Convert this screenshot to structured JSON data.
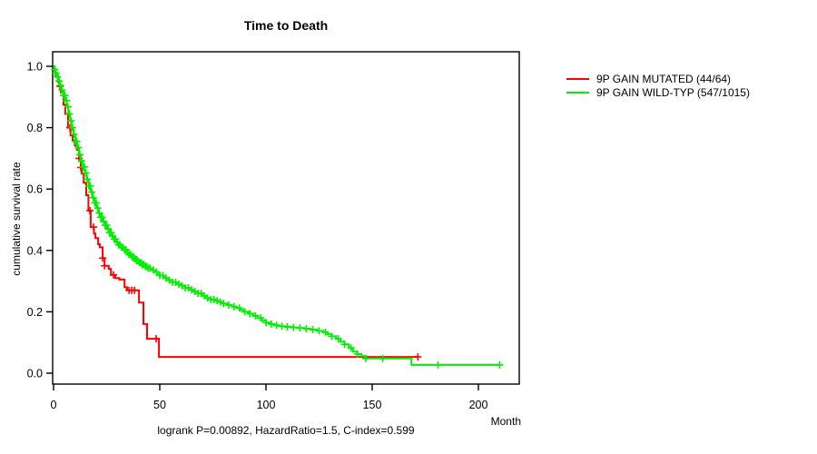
{
  "chart_data": {
    "type": "line",
    "subtype": "kaplan_meier_step",
    "title": "Time to Death",
    "xlabel": "Month",
    "ylabel": "cumulative survival rate",
    "annotation": "logrank P=0.00892, HazardRatio=1.5, C-index=0.599",
    "xlim": [
      0,
      220
    ],
    "ylim": [
      0.0,
      1.0
    ],
    "x_ticks": [
      0,
      50,
      100,
      150,
      200
    ],
    "y_ticks": [
      0.0,
      0.2,
      0.4,
      0.6,
      0.8,
      1.0
    ],
    "grid": false,
    "legend_position": "outside-top-right",
    "series": [
      {
        "name": "9P GAIN MUTATED (44/64)",
        "color": "#ff0000",
        "steps": [
          [
            0,
            1.0
          ],
          [
            0.5,
            0.985
          ],
          [
            1,
            0.97
          ],
          [
            2,
            0.95
          ],
          [
            2.6,
            0.935
          ],
          [
            3.5,
            0.915
          ],
          [
            4.7,
            0.875
          ],
          [
            5.5,
            0.845
          ],
          [
            6.8,
            0.8
          ],
          [
            8,
            0.775
          ],
          [
            9,
            0.758
          ],
          [
            10,
            0.742
          ],
          [
            11,
            0.728
          ],
          [
            12,
            0.7
          ],
          [
            12.8,
            0.67
          ],
          [
            13.3,
            0.65
          ],
          [
            14.2,
            0.62
          ],
          [
            15.4,
            0.58
          ],
          [
            16.4,
            0.53
          ],
          [
            17.5,
            0.476
          ],
          [
            19,
            0.455
          ],
          [
            19.7,
            0.44
          ],
          [
            21,
            0.42
          ],
          [
            21.8,
            0.41
          ],
          [
            23.1,
            0.375
          ],
          [
            24,
            0.35
          ],
          [
            26,
            0.34
          ],
          [
            27,
            0.32
          ],
          [
            29,
            0.31
          ],
          [
            31,
            0.305
          ],
          [
            33.4,
            0.28
          ],
          [
            34.6,
            0.27
          ],
          [
            40.2,
            0.23
          ],
          [
            42.3,
            0.16
          ],
          [
            44,
            0.112
          ],
          [
            49.6,
            0.053
          ],
          [
            171.5,
            0.053
          ]
        ],
        "censor_marks": [
          3,
          7.7,
          12,
          12.8,
          17.1,
          18.8,
          23.1,
          24,
          28.2,
          35.5,
          36.8,
          38.1,
          48.3,
          171.5
        ]
      },
      {
        "name": "9P GAIN WILD-TYP (547/1015)",
        "color": "#00ee00",
        "steps": [
          [
            0,
            1.0
          ],
          [
            0.5,
            0.99
          ],
          [
            1,
            0.978
          ],
          [
            1.7,
            0.965
          ],
          [
            2.4,
            0.952
          ],
          [
            3.1,
            0.938
          ],
          [
            3.8,
            0.922
          ],
          [
            4.7,
            0.905
          ],
          [
            5.5,
            0.888
          ],
          [
            6.2,
            0.868
          ],
          [
            7,
            0.845
          ],
          [
            7.8,
            0.822
          ],
          [
            8.6,
            0.8
          ],
          [
            9.4,
            0.778
          ],
          [
            10.3,
            0.755
          ],
          [
            11.1,
            0.735
          ],
          [
            12,
            0.712
          ],
          [
            12.9,
            0.692
          ],
          [
            13.8,
            0.672
          ],
          [
            14.7,
            0.652
          ],
          [
            15.6,
            0.632
          ],
          [
            16.6,
            0.61
          ],
          [
            17.5,
            0.59
          ],
          [
            18.4,
            0.572
          ],
          [
            19.3,
            0.555
          ],
          [
            20.2,
            0.538
          ],
          [
            21.2,
            0.522
          ],
          [
            22.2,
            0.508
          ],
          [
            23.2,
            0.494
          ],
          [
            24.2,
            0.482
          ],
          [
            25.2,
            0.47
          ],
          [
            26.2,
            0.458
          ],
          [
            27.3,
            0.447
          ],
          [
            28.4,
            0.437
          ],
          [
            29.5,
            0.427
          ],
          [
            30.6,
            0.418
          ],
          [
            31.8,
            0.41
          ],
          [
            33,
            0.402
          ],
          [
            34.2,
            0.394
          ],
          [
            35.4,
            0.387
          ],
          [
            36.6,
            0.38
          ],
          [
            37.8,
            0.373
          ],
          [
            39,
            0.366
          ],
          [
            40.3,
            0.36
          ],
          [
            41.6,
            0.354
          ],
          [
            43,
            0.348
          ],
          [
            44.4,
            0.342
          ],
          [
            45.8,
            0.336
          ],
          [
            47.2,
            0.33
          ],
          [
            48.6,
            0.324
          ],
          [
            50,
            0.318
          ],
          [
            52,
            0.31
          ],
          [
            54,
            0.303
          ],
          [
            56,
            0.296
          ],
          [
            58,
            0.29
          ],
          [
            60,
            0.285
          ],
          [
            62,
            0.278
          ],
          [
            64,
            0.272
          ],
          [
            66,
            0.266
          ],
          [
            68,
            0.26
          ],
          [
            70,
            0.252
          ],
          [
            72,
            0.245
          ],
          [
            74,
            0.24
          ],
          [
            76,
            0.236
          ],
          [
            78,
            0.232
          ],
          [
            80,
            0.227
          ],
          [
            82,
            0.222
          ],
          [
            84,
            0.217
          ],
          [
            86,
            0.212
          ],
          [
            88,
            0.206
          ],
          [
            90,
            0.2
          ],
          [
            92,
            0.194
          ],
          [
            94,
            0.187
          ],
          [
            96,
            0.18
          ],
          [
            98,
            0.172
          ],
          [
            100,
            0.165
          ],
          [
            102,
            0.16
          ],
          [
            104,
            0.156
          ],
          [
            106,
            0.153
          ],
          [
            109,
            0.151
          ],
          [
            112,
            0.149
          ],
          [
            115,
            0.147
          ],
          [
            118,
            0.145
          ],
          [
            121,
            0.142
          ],
          [
            124,
            0.138
          ],
          [
            127,
            0.133
          ],
          [
            129,
            0.127
          ],
          [
            131,
            0.12
          ],
          [
            133,
            0.112
          ],
          [
            135,
            0.103
          ],
          [
            137,
            0.094
          ],
          [
            139,
            0.082
          ],
          [
            141,
            0.07
          ],
          [
            143,
            0.062
          ],
          [
            145,
            0.056
          ],
          [
            147,
            0.048
          ],
          [
            168.5,
            0.027
          ],
          [
            210,
            0.027
          ]
        ],
        "censor_marks": [
          0.5,
          1.2,
          1.9,
          2.6,
          3.3,
          4,
          4.7,
          5.4,
          6.1,
          6.8,
          7.5,
          8.2,
          8.9,
          9.6,
          10.3,
          11,
          11.7,
          12.4,
          13.1,
          13.8,
          14.5,
          15.2,
          15.9,
          16.6,
          17.3,
          18,
          18.7,
          19.4,
          20.1,
          20.8,
          21.5,
          22.2,
          22.9,
          23.6,
          24.3,
          25,
          25.7,
          26.4,
          27.1,
          27.8,
          28.5,
          29.2,
          29.9,
          30.6,
          31.3,
          32,
          32.7,
          33.4,
          34.1,
          34.8,
          35.5,
          36.2,
          36.9,
          37.6,
          38.3,
          39,
          39.7,
          40.4,
          41.1,
          41.8,
          42.5,
          43.2,
          43.9,
          44.6,
          45.5,
          47,
          48.5,
          50,
          51.5,
          53,
          54.5,
          56,
          57.5,
          59,
          60.5,
          62,
          63.5,
          65,
          66.5,
          68,
          69.5,
          71,
          72.5,
          74,
          75.5,
          77,
          78.5,
          80,
          82.5,
          85,
          87.5,
          90,
          92.5,
          95,
          97.5,
          100,
          102.5,
          105,
          107.5,
          110,
          113,
          116,
          119,
          122,
          125,
          128,
          131,
          134,
          137,
          140,
          143,
          147,
          155,
          181,
          210
        ]
      }
    ]
  },
  "layout_colors": {
    "axis": "#000000",
    "text": "#000000",
    "background": "#ffffff"
  }
}
